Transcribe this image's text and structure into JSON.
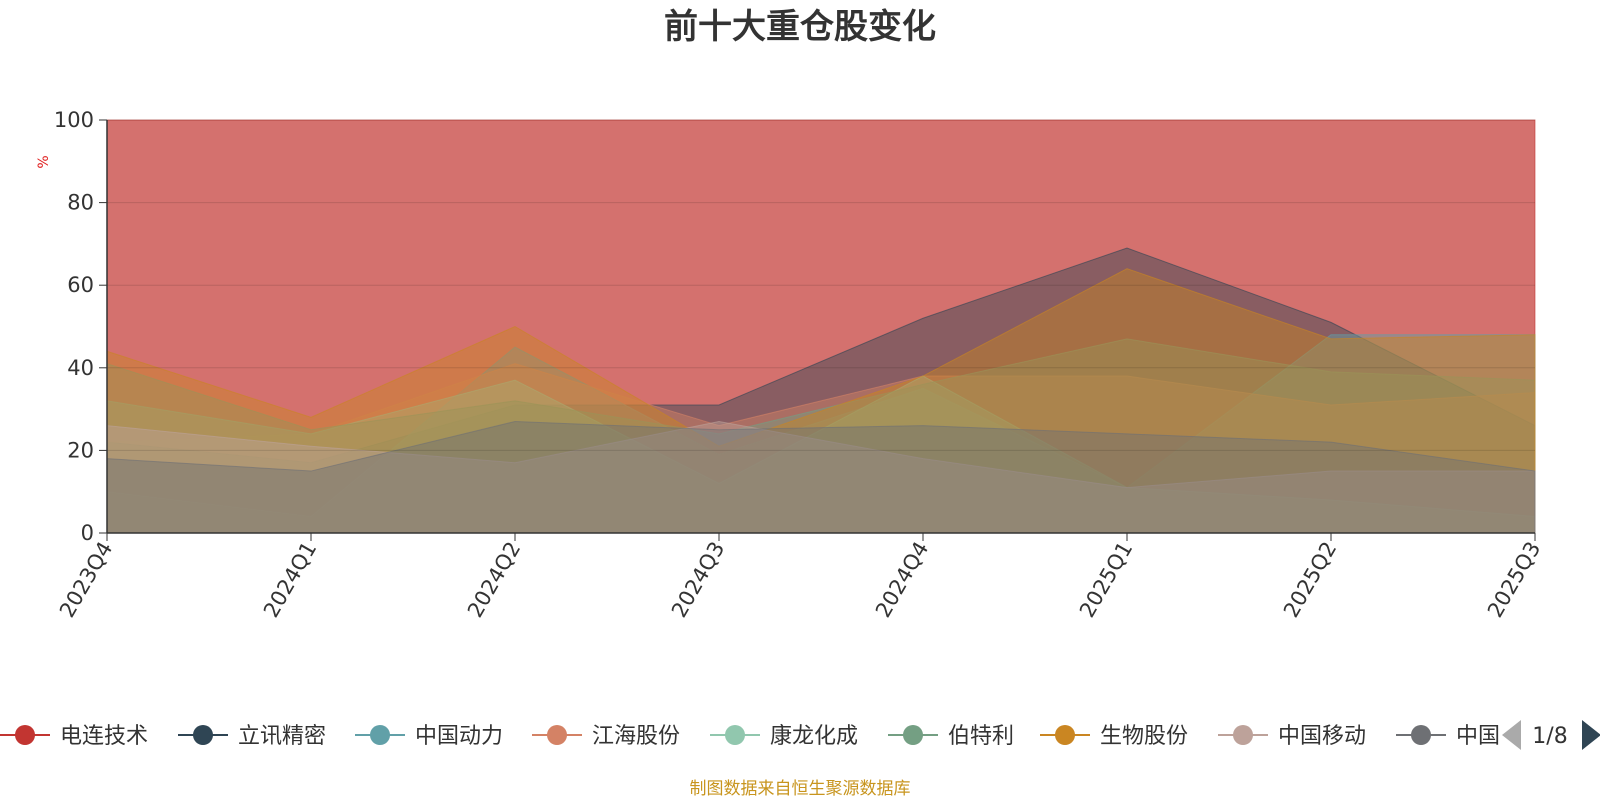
{
  "chart_data": {
    "type": "area",
    "title": "前十大重仓股变化",
    "ylabel": "%",
    "ylim": [
      0,
      100
    ],
    "yticks": [
      0,
      20,
      40,
      60,
      80,
      100
    ],
    "grid": true,
    "legend_placement": "bottom",
    "categories": [
      "2023Q4",
      "2024Q1",
      "2024Q2",
      "2024Q3",
      "2024Q4",
      "2025Q1",
      "2025Q2",
      "2025Q3"
    ],
    "series": [
      {
        "name": "电连技术",
        "color": "#c23531",
        "values": [
          100,
          100,
          100,
          100,
          100,
          100,
          100,
          100
        ]
      },
      {
        "name": "立讯精密",
        "color": "#2f4554",
        "values": [
          22,
          17,
          31,
          31,
          52,
          69,
          51,
          26
        ]
      },
      {
        "name": "中国动力",
        "color": "#61a0a8",
        "values": [
          10,
          4,
          45,
          19,
          35,
          11,
          48,
          48
        ]
      },
      {
        "name": "江海股份",
        "color": "#d48265",
        "values": [
          22,
          24,
          41,
          26,
          38,
          38,
          31,
          34
        ]
      },
      {
        "name": "康龙化成",
        "color": "#91c7ae",
        "values": [
          32,
          24,
          37,
          12,
          38,
          11,
          8,
          4
        ]
      },
      {
        "name": "伯特利",
        "color": "#749f83",
        "values": [
          41,
          25,
          32,
          24,
          36,
          47,
          39,
          37
        ]
      },
      {
        "name": "生物股份",
        "color": "#ca8622",
        "values": [
          44,
          28,
          50,
          21,
          38,
          64,
          47,
          48
        ]
      },
      {
        "name": "中国移动",
        "color": "#bda29a",
        "values": [
          26,
          21,
          17,
          27,
          18,
          11,
          15,
          15
        ]
      },
      {
        "name": "中国",
        "color": "#6e7074",
        "values": [
          18,
          15,
          27,
          25,
          26,
          24,
          22,
          15
        ]
      }
    ]
  },
  "legend": {
    "page_indicator": "1/8",
    "visible_items": [
      "电连技术",
      "立讯精密",
      "中国动力",
      "江海股份",
      "康龙化成",
      "伯特利",
      "生物股份",
      "中国移动",
      "中国"
    ]
  },
  "source_text": "制图数据来自恒生聚源数据库",
  "colors": {
    "source_text": "#c8951e",
    "unit_label": "#e02020",
    "axis": "#333333",
    "pager_active": "#2f4554",
    "pager_inactive": "#aaaaaa"
  }
}
